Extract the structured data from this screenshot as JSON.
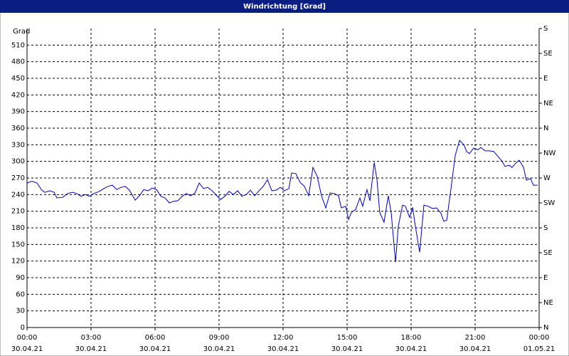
{
  "chart_data": {
    "type": "line",
    "title": "Windrichtung [Grad]",
    "y_label": "Grad",
    "color": "#0000c0",
    "grid": true,
    "x": [
      0,
      0.23,
      0.47,
      0.67,
      0.83,
      1.07,
      1.27,
      1.4,
      1.67,
      1.9,
      2.13,
      2.33,
      2.53,
      2.73,
      2.93,
      3.13,
      3.4,
      3.6,
      3.8,
      4,
      4.2,
      4.4,
      4.6,
      4.8,
      5.07,
      5.27,
      5.47,
      5.67,
      5.87,
      6.07,
      6.27,
      6.47,
      6.67,
      6.87,
      7.07,
      7.27,
      7.47,
      7.67,
      7.87,
      8.07,
      8.27,
      8.47,
      8.67,
      8.87,
      9.07,
      9.27,
      9.47,
      9.67,
      9.87,
      10.07,
      10.27,
      10.47,
      10.67,
      10.87,
      11.07,
      11.27,
      11.47,
      11.67,
      11.87,
      12.07,
      12.27,
      12.4,
      12.6,
      12.8,
      13,
      13.2,
      13.4,
      13.6,
      13.8,
      14,
      14.2,
      14.4,
      14.6,
      14.73,
      14.93,
      15.07,
      15.2,
      15.4,
      15.6,
      15.73,
      15.93,
      16.07,
      16.27,
      16.4,
      16.53,
      16.73,
      16.93,
      17.07,
      17.27,
      17.4,
      17.6,
      17.73,
      17.93,
      18.07,
      18.2,
      18.4,
      18.6,
      18.8,
      19,
      19.2,
      19.4,
      19.53,
      19.67,
      19.87,
      20.07,
      20.27,
      20.47,
      20.6,
      20.73,
      20.93,
      21.13,
      21.27,
      21.47,
      21.67,
      21.87,
      22.07,
      22.27,
      22.4,
      22.6,
      22.73,
      22.93,
      23.07,
      23.27,
      23.4,
      23.6,
      23.73,
      23.93
    ],
    "values": [
      261,
      264,
      261,
      249,
      244,
      247,
      244,
      234,
      235,
      242,
      244,
      242,
      237,
      240,
      237,
      242,
      246,
      251,
      255,
      257,
      249,
      253,
      255,
      248,
      230,
      238,
      249,
      247,
      252,
      249,
      237,
      234,
      225,
      228,
      229,
      237,
      242,
      238,
      243,
      261,
      251,
      253,
      247,
      239,
      231,
      237,
      246,
      240,
      247,
      237,
      240,
      248,
      238,
      247,
      255,
      267,
      247,
      248,
      253,
      247,
      251,
      279,
      278,
      262,
      255,
      238,
      289,
      273,
      238,
      216,
      243,
      242,
      238,
      216,
      219,
      195,
      208,
      213,
      234,
      219,
      249,
      229,
      298,
      267,
      208,
      190,
      238,
      206,
      118,
      183,
      221,
      219,
      199,
      217,
      183,
      136,
      221,
      219,
      215,
      216,
      206,
      192,
      194,
      251,
      311,
      338,
      330,
      318,
      314,
      324,
      321,
      325,
      319,
      319,
      318,
      309,
      300,
      291,
      293,
      289,
      298,
      302,
      289,
      266,
      269,
      257,
      257
    ],
    "xlim": [
      0,
      24
    ],
    "xticks": [
      {
        "value": 0,
        "label": "00:00",
        "date": "30.04.21"
      },
      {
        "value": 3,
        "label": "03:00",
        "date": "30.04.21"
      },
      {
        "value": 6,
        "label": "06:00",
        "date": "30.04.21"
      },
      {
        "value": 9,
        "label": "09:00",
        "date": "30.04.21"
      },
      {
        "value": 12,
        "label": "12:00",
        "date": "30.04.21"
      },
      {
        "value": 15,
        "label": "15:00",
        "date": "30.04.21"
      },
      {
        "value": 18,
        "label": "18:00",
        "date": "30.04.21"
      },
      {
        "value": 21,
        "label": "21:00",
        "date": "30.04.21"
      },
      {
        "value": 24,
        "label": "00:00",
        "date": "01.05.21"
      }
    ],
    "ylim": [
      0,
      540
    ],
    "yticks": [
      0,
      30,
      60,
      90,
      120,
      150,
      180,
      210,
      240,
      270,
      300,
      330,
      360,
      390,
      420,
      450,
      480,
      510
    ],
    "y2lim": [
      0,
      540
    ],
    "y2ticks": [
      {
        "value": 0,
        "label": "N"
      },
      {
        "value": 45,
        "label": "NE"
      },
      {
        "value": 90,
        "label": "E"
      },
      {
        "value": 135,
        "label": "SE"
      },
      {
        "value": 180,
        "label": "S"
      },
      {
        "value": 225,
        "label": "SW"
      },
      {
        "value": 270,
        "label": "W"
      },
      {
        "value": 315,
        "label": "NW"
      },
      {
        "value": 360,
        "label": "N"
      },
      {
        "value": 405,
        "label": "NE"
      },
      {
        "value": 450,
        "label": "E"
      },
      {
        "value": 495,
        "label": "SE"
      },
      {
        "value": 540,
        "label": "S"
      }
    ]
  }
}
